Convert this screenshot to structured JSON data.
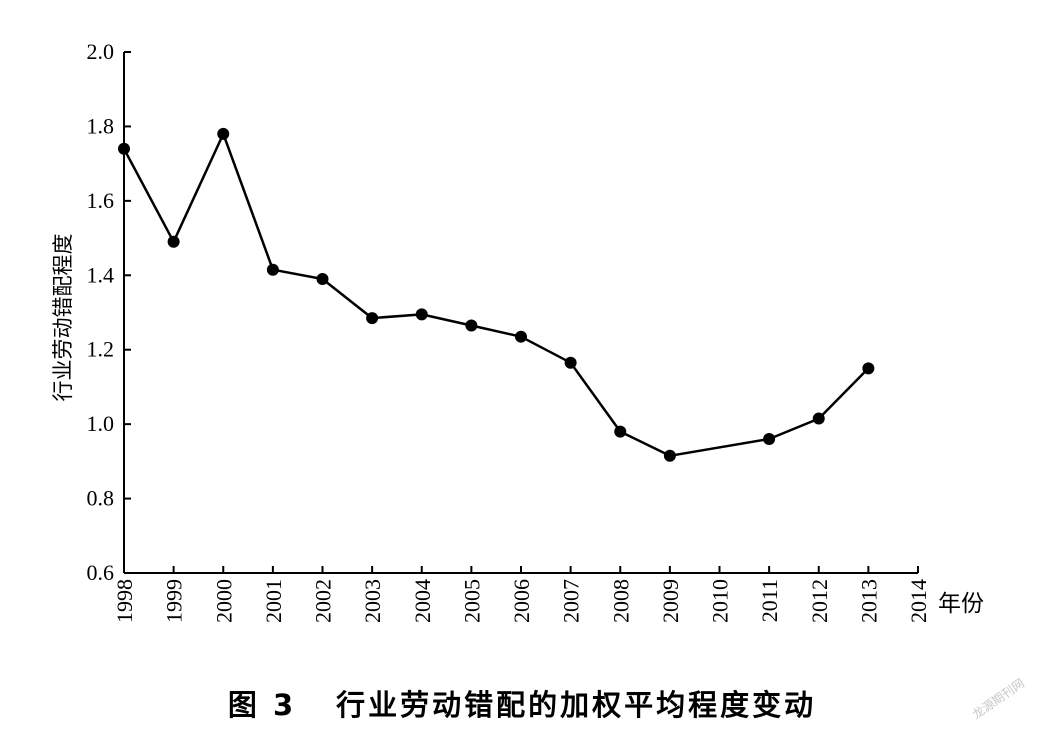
{
  "chart_data": {
    "type": "line",
    "title": "",
    "xlabel": "年份",
    "ylabel": "行业劳动错配程度",
    "xlim": [
      1998,
      2014
    ],
    "ylim": [
      0.6,
      2.0
    ],
    "x_ticks": [
      1998,
      1999,
      2000,
      2001,
      2002,
      2003,
      2004,
      2005,
      2006,
      2007,
      2008,
      2009,
      2010,
      2011,
      2012,
      2013,
      2014
    ],
    "y_ticks": [
      "0.6",
      "0.8",
      "1.0",
      "1.2",
      "1.4",
      "1.6",
      "1.8",
      "2.0"
    ],
    "grid": false,
    "legend": "none",
    "series": [
      {
        "x": [
          1998,
          1999,
          2000,
          2001,
          2002,
          2003,
          2004,
          2005,
          2006,
          2007,
          2008,
          2009,
          2011,
          2012,
          2013
        ],
        "values": [
          1.74,
          1.49,
          1.78,
          1.415,
          1.39,
          1.285,
          1.295,
          1.265,
          1.235,
          1.165,
          0.98,
          0.915,
          0.96,
          1.015,
          1.15
        ],
        "color": "#000000"
      }
    ]
  },
  "caption": {
    "figure_number": "图 3",
    "text": "行业劳动错配的加权平均程度变动"
  },
  "watermark": "龙源期刊网"
}
